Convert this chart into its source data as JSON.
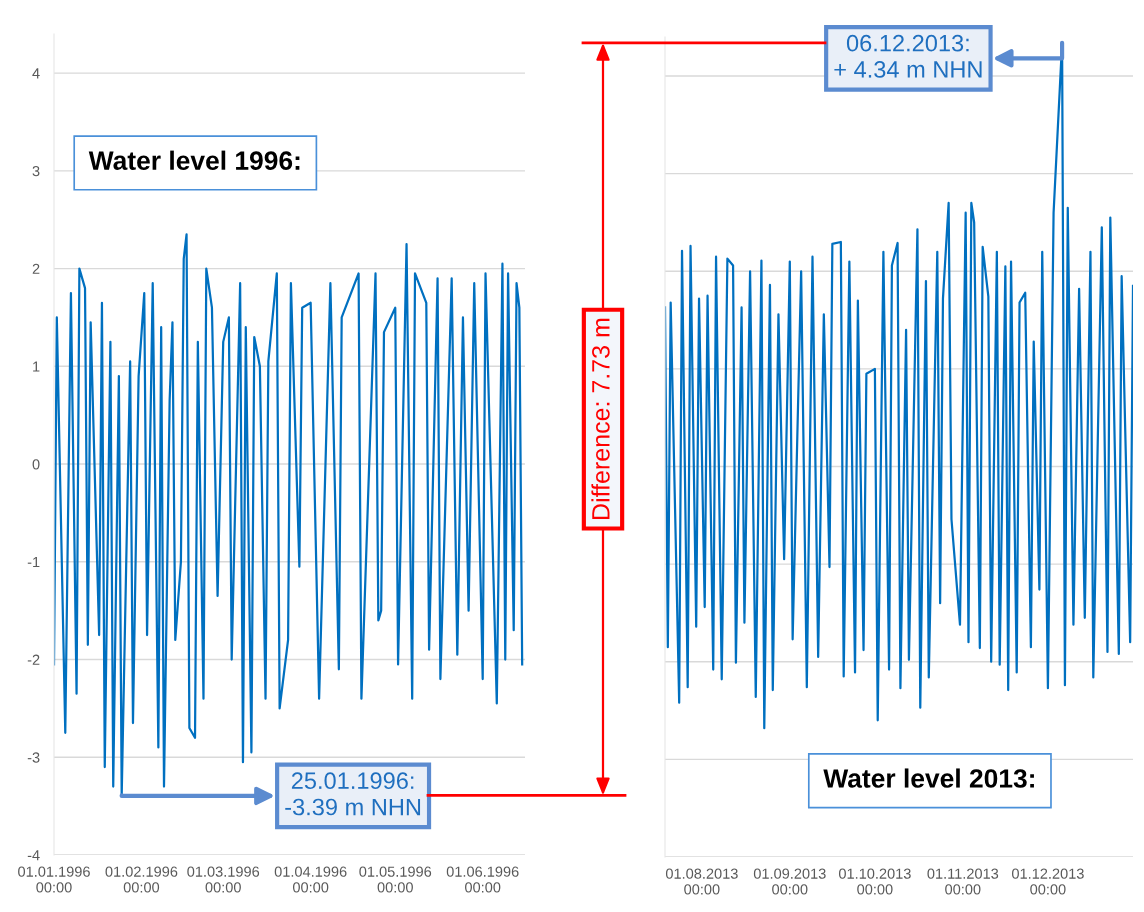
{
  "chart_data": [
    {
      "type": "line",
      "xlim": [
        "1996-01-01",
        "1996-06-16"
      ],
      "ylim": [
        -4,
        4.4
      ],
      "yticks": [
        -4,
        -3,
        -2,
        -1,
        0,
        1,
        2,
        3,
        4
      ],
      "grid": "y",
      "xticks": [
        {
          "value": "1996-01-01",
          "label": "01.01.1996\n00:00"
        },
        {
          "value": "1996-02-01",
          "label": "01.02.1996\n00:00"
        },
        {
          "value": "1996-03-01",
          "label": "01.03.1996\n00:00"
        },
        {
          "value": "1996-04-01",
          "label": "01.04.1996\n00:00"
        },
        {
          "value": "1996-05-01",
          "label": "01.05.1996\n00:00"
        },
        {
          "value": "1996-06-01",
          "label": "01.06.1996\n00:00"
        }
      ],
      "x": [
        "1996-01-01",
        "1996-01-02",
        "1996-01-05",
        "1996-01-07",
        "1996-01-09",
        "1996-01-10",
        "1996-01-12",
        "1996-01-13",
        "1996-01-14",
        "1996-01-17",
        "1996-01-18",
        "1996-01-19",
        "1996-01-21",
        "1996-01-22",
        "1996-01-24",
        "1996-01-25",
        "1996-01-28",
        "1996-01-29",
        "1996-01-31",
        "1996-02-02",
        "1996-02-03",
        "1996-02-05",
        "1996-02-07",
        "1996-02-08",
        "1996-02-09",
        "1996-02-11",
        "1996-02-12",
        "1996-02-13",
        "1996-02-15",
        "1996-02-16",
        "1996-02-17",
        "1996-02-18",
        "1996-02-20",
        "1996-02-21",
        "1996-02-23",
        "1996-02-24",
        "1996-02-26",
        "1996-02-28",
        "1996-03-01",
        "1996-03-03",
        "1996-03-04",
        "1996-03-07",
        "1996-03-08",
        "1996-03-09",
        "1996-03-11",
        "1996-03-12",
        "1996-03-14",
        "1996-03-16",
        "1996-03-17",
        "1996-03-20",
        "1996-03-21",
        "1996-03-24",
        "1996-03-25",
        "1996-03-28",
        "1996-03-29",
        "1996-04-01",
        "1996-04-04",
        "1996-04-08",
        "1996-04-11",
        "1996-04-12",
        "1996-04-18",
        "1996-04-19",
        "1996-04-24",
        "1996-04-25",
        "1996-04-26",
        "1996-04-27",
        "1996-05-01",
        "1996-05-02",
        "1996-05-05",
        "1996-05-07",
        "1996-05-08",
        "1996-05-12",
        "1996-05-13",
        "1996-05-16",
        "1996-05-17",
        "1996-05-21",
        "1996-05-23",
        "1996-05-25",
        "1996-05-27",
        "1996-05-29",
        "1996-06-01",
        "1996-06-02",
        "1996-06-06",
        "1996-06-08",
        "1996-06-09",
        "1996-06-10",
        "1996-06-12",
        "1996-06-13",
        "1996-06-14",
        "1996-06-15"
      ],
      "series": [
        {
          "color": "#0070c0",
          "values": [
            -2.05,
            1.5,
            -2.75,
            1.75,
            -2.35,
            2.0,
            1.8,
            -1.85,
            1.45,
            -1.75,
            1.65,
            -3.1,
            1.25,
            -3.3,
            0.9,
            -3.39,
            1.05,
            -2.65,
            0.9,
            1.75,
            -1.75,
            1.85,
            -2.9,
            1.4,
            -3.3,
            0.65,
            1.45,
            -1.8,
            -1.0,
            2.1,
            2.35,
            -2.7,
            -2.8,
            1.25,
            -2.4,
            2.0,
            1.6,
            -1.35,
            1.25,
            1.5,
            -2.0,
            1.85,
            -3.05,
            1.4,
            -2.95,
            1.3,
            1.0,
            -2.4,
            1.05,
            1.95,
            -2.5,
            -1.8,
            1.85,
            -1.05,
            1.6,
            1.65,
            -2.4,
            1.85,
            -2.1,
            1.5,
            1.95,
            -2.4,
            1.95,
            -1.6,
            -1.5,
            1.35,
            1.6,
            -2.05,
            2.25,
            -2.4,
            1.95,
            1.65,
            -1.9,
            1.9,
            -2.2,
            1.9,
            -1.95,
            1.5,
            -1.5,
            1.85,
            -2.2,
            1.95,
            -2.45,
            2.05,
            -2.0,
            1.95,
            -1.7,
            1.85,
            1.6,
            -2.05
          ]
        }
      ],
      "annotations": [
        "Water level 1996:",
        {
          "text": "25.01.1996:\n-3.39 m NHN",
          "x": "1996-01-25",
          "y": -3.39
        },
        "Difference: 7.73 m"
      ]
    },
    {
      "type": "line",
      "xlim": [
        "2013-07-19",
        "2013-12-31"
      ],
      "ylim": [
        -4,
        4.4
      ],
      "yticks": [
        -4,
        -3,
        -2,
        -1,
        0,
        1,
        2,
        3,
        4
      ],
      "grid": "y",
      "tick_labels": "x",
      "xticks": [
        {
          "value": "2013-08-01",
          "label": "01.08.2013\n00:00"
        },
        {
          "value": "2013-09-01",
          "label": "01.09.2013\n00:00"
        },
        {
          "value": "2013-10-01",
          "label": "01.10.2013\n00:00"
        },
        {
          "value": "2013-11-01",
          "label": "01.11.2013\n00:00"
        },
        {
          "value": "2013-12-01",
          "label": "01.12.2013\n00:00"
        }
      ],
      "x": [
        "2013-07-19",
        "2013-07-20",
        "2013-07-21",
        "2013-07-24",
        "2013-07-25",
        "2013-07-27",
        "2013-07-28",
        "2013-07-30",
        "2013-07-31",
        "2013-08-02",
        "2013-08-03",
        "2013-08-05",
        "2013-08-06",
        "2013-08-08",
        "2013-08-10",
        "2013-08-12",
        "2013-08-13",
        "2013-08-15",
        "2013-08-16",
        "2013-08-18",
        "2013-08-20",
        "2013-08-22",
        "2013-08-23",
        "2013-08-25",
        "2013-08-26",
        "2013-08-28",
        "2013-08-30",
        "2013-09-01",
        "2013-09-02",
        "2013-09-05",
        "2013-09-07",
        "2013-09-09",
        "2013-09-11",
        "2013-09-13",
        "2013-09-15",
        "2013-09-16",
        "2013-09-19",
        "2013-09-20",
        "2013-09-22",
        "2013-09-24",
        "2013-09-25",
        "2013-09-27",
        "2013-09-28",
        "2013-10-01",
        "2013-10-02",
        "2013-10-04",
        "2013-10-06",
        "2013-10-07",
        "2013-10-09",
        "2013-10-10",
        "2013-10-12",
        "2013-10-13",
        "2013-10-16",
        "2013-10-17",
        "2013-10-19",
        "2013-10-20",
        "2013-10-23",
        "2013-10-24",
        "2013-10-25",
        "2013-10-27",
        "2013-10-28",
        "2013-10-31",
        "2013-11-02",
        "2013-11-03",
        "2013-11-04",
        "2013-11-05",
        "2013-11-07",
        "2013-11-08",
        "2013-11-10",
        "2013-11-11",
        "2013-11-13",
        "2013-11-14",
        "2013-11-16",
        "2013-11-17",
        "2013-11-18",
        "2013-11-20",
        "2013-11-21",
        "2013-11-23",
        "2013-11-25",
        "2013-11-26",
        "2013-11-28",
        "2013-11-29",
        "2013-12-01",
        "2013-12-03",
        "2013-12-06",
        "2013-12-07",
        "2013-12-08",
        "2013-12-10",
        "2013-12-12",
        "2013-12-14",
        "2013-12-16",
        "2013-12-17",
        "2013-12-20",
        "2013-12-22",
        "2013-12-23",
        "2013-12-26",
        "2013-12-27",
        "2013-12-30",
        "2013-12-31"
      ],
      "series": [
        {
          "color": "#0070c0",
          "values": [
            1.63,
            -1.85,
            1.68,
            -2.42,
            2.21,
            -2.26,
            2.26,
            -1.64,
            1.72,
            -1.44,
            1.75,
            -2.08,
            2.15,
            -2.18,
            2.13,
            2.06,
            -2.01,
            1.63,
            -1.6,
            2.0,
            -2.36,
            2.11,
            -2.68,
            1.86,
            -2.29,
            1.56,
            -0.95,
            2.1,
            -1.77,
            2.0,
            -2.26,
            2.15,
            -1.95,
            1.56,
            -1.03,
            2.28,
            2.3,
            -2.15,
            2.1,
            -2.11,
            1.7,
            -1.88,
            0.95,
            1.0,
            -2.6,
            2.2,
            -2.08,
            2.06,
            2.29,
            -2.27,
            1.4,
            -1.98,
            2.43,
            -2.47,
            1.9,
            -2.16,
            2.2,
            -1.4,
            1.72,
            2.7,
            -0.54,
            -1.62,
            2.6,
            -1.8,
            2.7,
            2.5,
            -1.86,
            2.25,
            1.74,
            -2.0,
            2.2,
            -2.03,
            2.05,
            -2.29,
            2.1,
            -2.11,
            1.68,
            1.78,
            -1.85,
            1.28,
            -1.26,
            2.2,
            -2.27,
            2.6,
            4.34,
            -2.24,
            2.65,
            -1.62,
            1.82,
            -1.55,
            2.2,
            -2.16,
            2.45,
            -1.9,
            2.55,
            -1.92,
            1.95,
            -1.8,
            1.85
          ]
        }
      ],
      "annotations": [
        {
          "text": "06.12.2013:\n+ 4.34 m NHN",
          "x": "2013-12-06",
          "y": 4.34
        },
        "Water level 2013:"
      ]
    }
  ]
}
